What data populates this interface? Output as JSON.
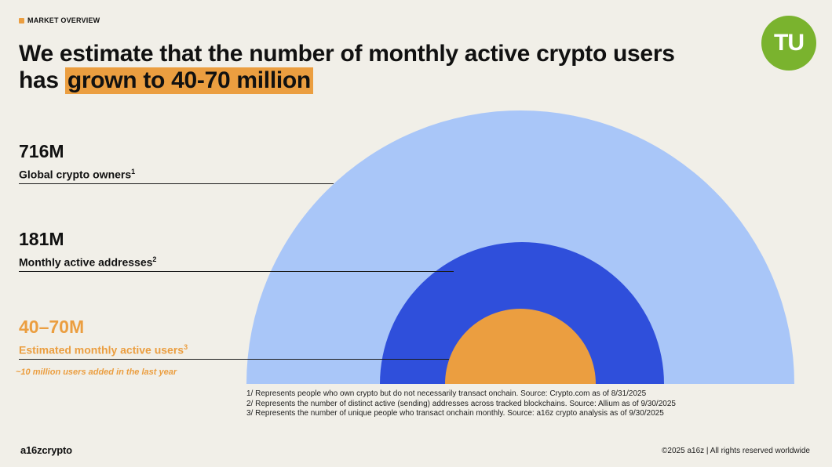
{
  "header": {
    "eyebrow": "MARKET OVERVIEW",
    "headline_line1": "We estimate that the number of monthly active crypto users",
    "headline_line2_prefix": "has ",
    "headline_highlight": "grown to 40-70 million"
  },
  "logo_badge": {
    "text": "TU",
    "color": "#7ab32e"
  },
  "stats": [
    {
      "value": "716M",
      "label": "Global crypto owners",
      "footnote_mark": "1"
    },
    {
      "value": "181M",
      "label": "Monthly active addresses",
      "footnote_mark": "2"
    },
    {
      "value": "40–70M",
      "label": "Estimated monthly active users",
      "footnote_mark": "3"
    }
  ],
  "note": "~10 million users added in the last year",
  "footnotes": [
    "1/ Represents people who own crypto but do not necessarily transact onchain. Source: Crypto.com as of 8/31/2025",
    "2/ Represents the number of distinct active (sending) addresses across tracked blockchains. Source: Allium as of 9/30/2025",
    "3/ Represents the number of unique people who transact onchain monthly. Source: a16z crypto analysis as of 9/30/2025"
  ],
  "footer": {
    "brand": "a16zcrypto",
    "copyright": "©2025 a16z | All rights reserved worldwide"
  },
  "colors": {
    "background": "#f1efe8",
    "accent_orange": "#eb9e40",
    "light_blue": "#a9c6f8",
    "blue": "#2f4fdb"
  },
  "chart_data": {
    "type": "nested-semicircle",
    "series": [
      {
        "name": "Global crypto owners",
        "value": 716,
        "color": "#a9c6f8"
      },
      {
        "name": "Monthly active addresses",
        "value": 181,
        "color": "#2f4fdb"
      },
      {
        "name": "Estimated monthly active users",
        "value_range": [
          40,
          70
        ],
        "color": "#eb9e40"
      }
    ]
  }
}
